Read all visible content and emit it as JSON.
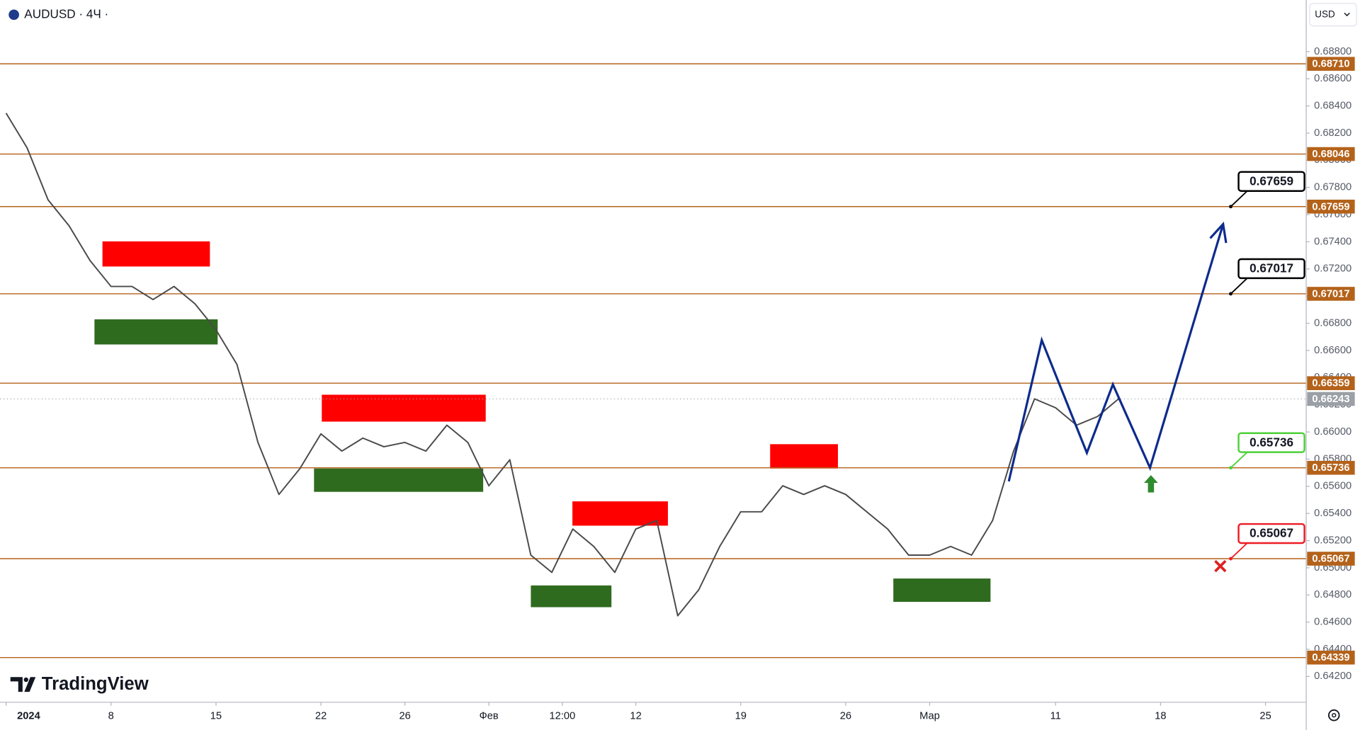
{
  "header": {
    "symbol": "AUDUSD · 4Ч ·",
    "currency": "USD",
    "logo": "TradingView"
  },
  "chart_data": {
    "type": "line",
    "color": "#4a4a4a",
    "x": [
      0,
      1,
      2,
      3,
      4,
      5,
      6,
      7,
      8,
      9,
      10,
      11,
      12,
      13,
      14,
      15,
      16,
      17,
      18,
      19,
      20,
      21,
      22,
      23,
      24,
      25,
      26,
      27,
      28,
      29,
      30,
      31,
      32,
      33,
      34,
      35,
      36,
      37,
      38,
      39,
      40,
      41,
      42,
      43,
      44,
      45,
      46,
      47,
      48,
      49,
      50,
      51,
      52,
      53
    ],
    "values": [
      0.68347,
      0.68092,
      0.67709,
      0.67518,
      0.67262,
      0.67071,
      0.67071,
      0.66975,
      0.67071,
      0.66943,
      0.66752,
      0.66497,
      0.65923,
      0.6554,
      0.65731,
      0.65986,
      0.65859,
      0.65955,
      0.65891,
      0.65923,
      0.65859,
      0.6605,
      0.65923,
      0.65604,
      0.65795,
      0.65093,
      0.64966,
      0.65285,
      0.65157,
      0.64966,
      0.65285,
      0.65348,
      0.64647,
      0.64838,
      0.65157,
      0.65412,
      0.65412,
      0.65604,
      0.6554,
      0.65604,
      0.6554,
      0.65412,
      0.65285,
      0.65093,
      0.65093,
      0.65157,
      0.65093,
      0.65348,
      0.65859,
      0.66243,
      0.66178,
      0.6605,
      0.66114,
      0.66243
    ],
    "xlim": [
      -0.29,
      61.94
    ],
    "ylim": [
      0.6401,
      0.6918
    ],
    "xticks": [
      {
        "value": 0,
        "label": "2024"
      },
      {
        "value": 5,
        "label": "8"
      },
      {
        "value": 10,
        "label": "15"
      },
      {
        "value": 15,
        "label": "22"
      },
      {
        "value": 19,
        "label": "26"
      },
      {
        "value": 23,
        "label": "Фев"
      },
      {
        "value": 26.5,
        "label": "12:00"
      },
      {
        "value": 30,
        "label": "12"
      },
      {
        "value": 35,
        "label": "19"
      },
      {
        "value": 40,
        "label": "26"
      },
      {
        "value": 44,
        "label": "Мар"
      },
      {
        "value": 50,
        "label": "11"
      },
      {
        "value": 55,
        "label": "18"
      },
      {
        "value": 60,
        "label": "25"
      }
    ],
    "yticks": [
      {
        "value": 0.642,
        "label": "0.64200"
      },
      {
        "value": 0.644,
        "label": "0.64400"
      },
      {
        "value": 0.646,
        "label": "0.64600"
      },
      {
        "value": 0.648,
        "label": "0.64800"
      },
      {
        "value": 0.65,
        "label": "0.65000"
      },
      {
        "value": 0.652,
        "label": "0.65200"
      },
      {
        "value": 0.654,
        "label": "0.65400"
      },
      {
        "value": 0.656,
        "label": "0.65600"
      },
      {
        "value": 0.658,
        "label": "0.65800"
      },
      {
        "value": 0.66,
        "label": "0.66000"
      },
      {
        "value": 0.662,
        "label": "0.66200"
      },
      {
        "value": 0.664,
        "label": "0.66400"
      },
      {
        "value": 0.666,
        "label": "0.66600"
      },
      {
        "value": 0.668,
        "label": "0.66800"
      },
      {
        "value": 0.67,
        "label": "0.67000"
      },
      {
        "value": 0.672,
        "label": "0.67200"
      },
      {
        "value": 0.674,
        "label": "0.67400"
      },
      {
        "value": 0.676,
        "label": "0.67600"
      },
      {
        "value": 0.678,
        "label": "0.67800"
      },
      {
        "value": 0.68,
        "label": "0.68000"
      },
      {
        "value": 0.682,
        "label": "0.68200"
      },
      {
        "value": 0.684,
        "label": "0.68400"
      },
      {
        "value": 0.686,
        "label": "0.68600"
      },
      {
        "value": 0.688,
        "label": "0.68800"
      }
    ],
    "levels": {
      "color": "#b4621a",
      "values": [
        0.6871,
        0.68046,
        0.67659,
        0.67017,
        0.66359,
        0.65736,
        0.65067,
        0.64339
      ],
      "value_labels": [
        "0.68710",
        "0.68046",
        "0.67659",
        "0.67017",
        "0.66359",
        "0.65736",
        "0.65067",
        "0.64339"
      ]
    },
    "last_price": {
      "value": 0.66243,
      "label": "0.66243",
      "color": "#9aa0a6"
    },
    "zones": [
      {
        "x": [
          4.59,
          9.71
        ],
        "y": [
          0.67218,
          0.67403
        ],
        "color": "#ff0000"
      },
      {
        "x": [
          15.04,
          22.85
        ],
        "y": [
          0.66076,
          0.66274
        ],
        "color": "#ff0000"
      },
      {
        "x": [
          26.98,
          31.53
        ],
        "y": [
          0.6531,
          0.65489
        ],
        "color": "#ff0000"
      },
      {
        "x": [
          36.4,
          39.63
        ],
        "y": [
          0.65731,
          0.6591
        ],
        "color": "#ff0000"
      },
      {
        "x": [
          4.21,
          10.08
        ],
        "y": [
          0.66644,
          0.66829
        ],
        "color": "#2e6b1e"
      },
      {
        "x": [
          14.67,
          22.73
        ],
        "y": [
          0.65559,
          0.65731
        ],
        "color": "#2e6b1e"
      },
      {
        "x": [
          25,
          28.84
        ],
        "y": [
          0.6471,
          0.6487
        ],
        "color": "#2e6b1e"
      },
      {
        "x": [
          42.27,
          46.9
        ],
        "y": [
          0.64749,
          0.64921
        ],
        "color": "#2e6b1e"
      }
    ],
    "projection": {
      "color": "#0d2b8c",
      "x": [
        47.77,
        49.34,
        51.49,
        52.73,
        54.5,
        57.98
      ],
      "values": [
        0.65636,
        0.66676,
        0.65846,
        0.6635,
        0.65736,
        0.6753
      ]
    },
    "targets": [
      {
        "value": 0.67659,
        "label": "0.67659",
        "color": "#000000"
      },
      {
        "value": 0.67017,
        "label": "0.67017",
        "color": "#000000"
      },
      {
        "value": 0.65736,
        "label": "0.65736",
        "color": "#4cd137"
      },
      {
        "value": 0.65067,
        "label": "0.65067",
        "color": "#ee1c25"
      }
    ]
  }
}
